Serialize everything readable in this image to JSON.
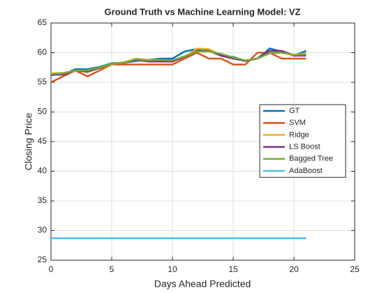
{
  "chart_data": {
    "type": "line",
    "title": "Ground Truth vs Machine Learning Model: VZ",
    "x_label": "Days Ahead Predicted",
    "y_label": "Closing Price",
    "x": [
      0,
      1,
      2,
      3,
      4,
      5,
      6,
      7,
      8,
      9,
      10,
      11,
      12,
      13,
      14,
      15,
      16,
      17,
      18,
      19,
      20,
      21
    ],
    "series": [
      {
        "name": "GT",
        "color": "#0072bd",
        "values": [
          56.2,
          56.4,
          57.2,
          57.2,
          57.6,
          58.2,
          58.3,
          58.6,
          58.8,
          59.0,
          59.0,
          60.2,
          60.6,
          60.4,
          59.5,
          59.3,
          58.6,
          59.0,
          60.7,
          60.2,
          59.5,
          60.3
        ]
      },
      {
        "name": "SVM",
        "color": "#d95319",
        "values": [
          55.0,
          56.0,
          57.0,
          56.0,
          57.0,
          58.0,
          58.0,
          58.0,
          58.0,
          58.0,
          58.0,
          59.0,
          60.0,
          59.0,
          59.0,
          58.0,
          58.0,
          60.0,
          60.0,
          59.0,
          59.0,
          59.0
        ]
      },
      {
        "name": "Ridge",
        "color": "#edb120",
        "values": [
          56.5,
          56.6,
          57.0,
          56.7,
          57.4,
          58.0,
          58.4,
          59.0,
          58.8,
          58.8,
          58.6,
          59.2,
          60.7,
          60.6,
          59.6,
          59.0,
          58.7,
          59.0,
          60.0,
          60.3,
          59.6,
          59.9
        ]
      },
      {
        "name": "LS Boost",
        "color": "#7e2f8e",
        "values": [
          56.3,
          56.3,
          57.0,
          56.8,
          57.4,
          58.1,
          58.3,
          58.8,
          58.5,
          58.5,
          58.5,
          59.3,
          60.3,
          60.3,
          59.5,
          59.0,
          58.6,
          59.0,
          60.3,
          60.3,
          59.5,
          59.5
        ]
      },
      {
        "name": "Bagged Tree",
        "color": "#77ac30",
        "values": [
          56.4,
          56.5,
          57.0,
          57.0,
          57.5,
          58.1,
          58.3,
          58.9,
          58.7,
          58.8,
          58.7,
          59.4,
          60.2,
          60.2,
          59.8,
          59.2,
          58.7,
          59.0,
          59.9,
          60.0,
          59.6,
          59.7
        ]
      },
      {
        "name": "AdaBoost",
        "color": "#4dbeee",
        "values": [
          28.7,
          28.7,
          28.7,
          28.7,
          28.7,
          28.7,
          28.7,
          28.7,
          28.7,
          28.7,
          28.7,
          28.7,
          28.7,
          28.7,
          28.7,
          28.7,
          28.7,
          28.7,
          28.7,
          28.7,
          28.7,
          28.7
        ]
      }
    ],
    "xlim": [
      0,
      25
    ],
    "xticks": [
      0,
      5,
      10,
      15,
      20,
      25
    ],
    "ylim": [
      25,
      65
    ],
    "yticks": [
      25,
      30,
      35,
      40,
      45,
      50,
      55,
      60,
      65
    ],
    "grid": true,
    "legend": "east"
  }
}
